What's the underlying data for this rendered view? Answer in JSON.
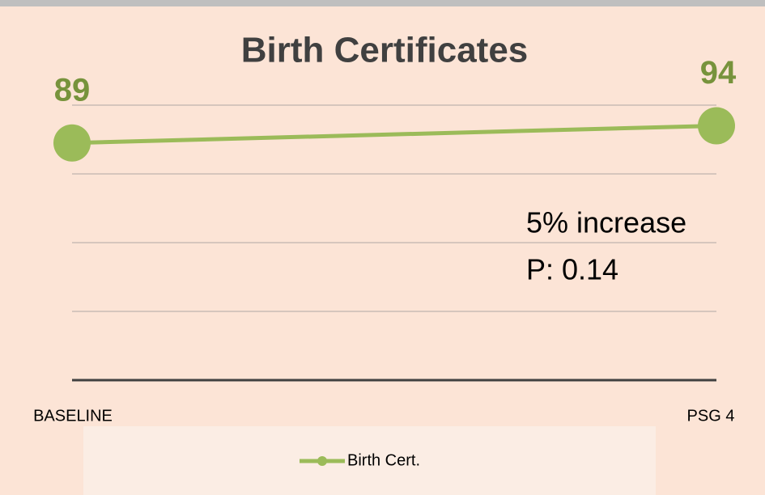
{
  "chart_data": {
    "type": "line",
    "title": "Birth Certificates",
    "categories": [
      "BASELINE",
      "PSG 4"
    ],
    "series": [
      {
        "name": "Birth Cert.",
        "color": "#9bbb59",
        "values": [
          89,
          94
        ]
      }
    ],
    "ylim": [
      20,
      100
    ],
    "yticks": [
      20,
      40,
      60,
      80,
      100
    ],
    "grid": true,
    "annotations": [
      "5% increase",
      "P: 0.14"
    ],
    "legend": "bottom"
  }
}
